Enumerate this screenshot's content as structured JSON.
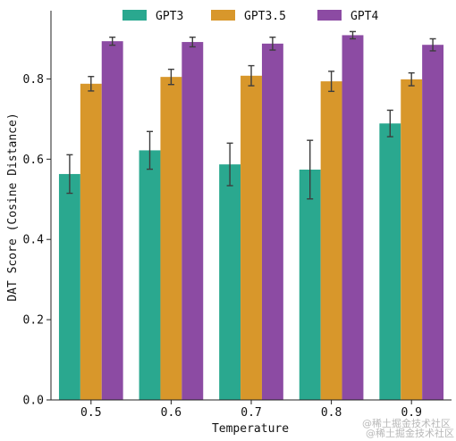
{
  "chart_data": {
    "type": "bar",
    "title": "",
    "xlabel": "Temperature",
    "ylabel": "DAT Score (Cosine Distance)",
    "categories": [
      "0.5",
      "0.6",
      "0.7",
      "0.8",
      "0.9"
    ],
    "ylim": [
      0,
      0.97
    ],
    "yticks": [
      "0.0",
      "0.2",
      "0.4",
      "0.6",
      "0.8"
    ],
    "legend_position": "top-center",
    "grid": false,
    "series": [
      {
        "name": "GPT3",
        "color": "#2aa88f",
        "values": [
          0.563,
          0.622,
          0.587,
          0.574,
          0.689
        ],
        "err": [
          0.048,
          0.047,
          0.053,
          0.073,
          0.033
        ]
      },
      {
        "name": "GPT3.5",
        "color": "#d8972b",
        "values": [
          0.788,
          0.805,
          0.808,
          0.794,
          0.799
        ],
        "err": [
          0.018,
          0.019,
          0.025,
          0.025,
          0.016
        ]
      },
      {
        "name": "GPT4",
        "color": "#8c4ba3",
        "values": [
          0.894,
          0.892,
          0.888,
          0.909,
          0.885
        ],
        "err": [
          0.01,
          0.012,
          0.016,
          0.009,
          0.015
        ]
      }
    ]
  },
  "watermark": "@稀土掘金技术社区"
}
